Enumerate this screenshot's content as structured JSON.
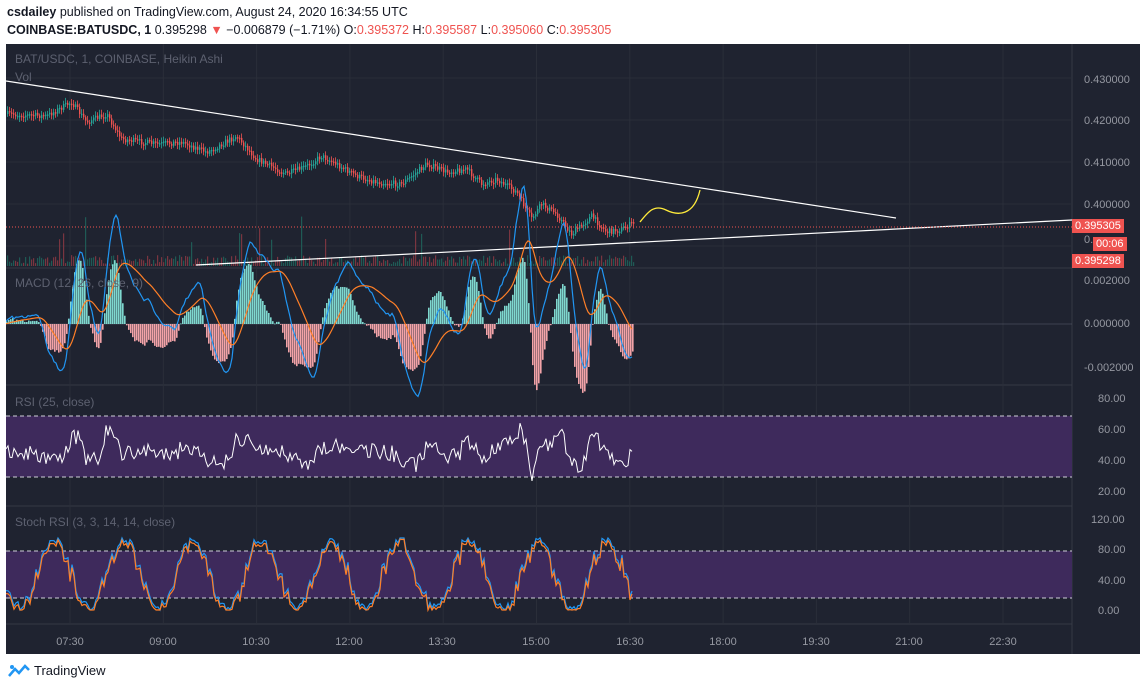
{
  "header": {
    "author": "csdailey",
    "published_text": " published on TradingView.com, August 24, 2020 16:34:55 UTC",
    "symbol": "COINBASE:BATUSDC, 1",
    "last": "0.395298",
    "change": "−0.006879 (−1.71%)",
    "o_label": "O:",
    "o_value": "0.395372",
    "h_label": "H:",
    "h_value": "0.395587",
    "l_label": "L:",
    "l_value": "0.395060",
    "c_label": "C:",
    "c_value": "0.395305",
    "arrow": "▼"
  },
  "panes": {
    "price_title": "BAT/USDC, 1, COINBASE, Heikin Ashi",
    "vol_label": "Vol",
    "macd_title": "MACD (12, 26, close, 9)",
    "rsi_title": "RSI (25, close)",
    "stoch_title": "Stoch RSI (3, 3, 14, 14, close)"
  },
  "axes": {
    "price": [
      "0.430000",
      "0.420000",
      "0.410000",
      "0.400000"
    ],
    "price_partial": "0.",
    "macd": [
      "0.002000",
      "0.000000",
      "-0.002000"
    ],
    "rsi": [
      "80.00",
      "60.00",
      "40.00",
      "20.00"
    ],
    "stoch": [
      "120.00",
      "80.00",
      "40.00",
      "0.00"
    ],
    "time": [
      "07:30",
      "09:00",
      "10:30",
      "12:00",
      "13:30",
      "15:00",
      "16:30",
      "18:00",
      "19:30",
      "21:00",
      "22:30"
    ]
  },
  "tags": {
    "close_price": "0.395305",
    "countdown": "00:06",
    "last_price": "0.395298"
  },
  "footer": {
    "brand": "TradingView"
  },
  "colors": {
    "bg": "#1f2330",
    "up": "#26a69a",
    "down": "#ef5350",
    "macd": "#2196f3",
    "signal": "#ff7f27",
    "rsi_band": "#3e2a5c",
    "trendline": "#ffffff",
    "projection": "#ffeb3b"
  }
}
